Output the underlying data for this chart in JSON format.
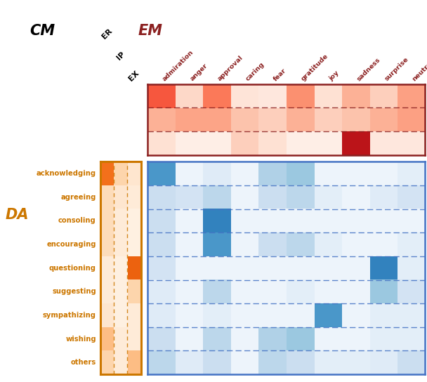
{
  "em_labels": [
    "ER",
    "IP",
    "EX"
  ],
  "da_labels": [
    "acknowledging",
    "agreeing",
    "consoling",
    "encouraging",
    "questioning",
    "suggesting",
    "sympathizing",
    "wishing",
    "others"
  ],
  "emotion_labels": [
    "admiration",
    "anger",
    "approval",
    "caring",
    "fear",
    "gratitude",
    "joy",
    "sadness",
    "surprise",
    "neutral"
  ],
  "em_data": [
    [
      0.55,
      0.15,
      0.45,
      0.1,
      0.08,
      0.38,
      0.12,
      0.28,
      0.18,
      0.33
    ],
    [
      0.28,
      0.32,
      0.32,
      0.22,
      0.18,
      0.28,
      0.18,
      0.22,
      0.28,
      0.33
    ],
    [
      0.12,
      0.04,
      0.04,
      0.18,
      0.12,
      0.04,
      0.04,
      0.8,
      0.08,
      0.08
    ]
  ],
  "da_data": [
    [
      0.6,
      0.05,
      0.12,
      0.05,
      0.32,
      0.38,
      0.05,
      0.05,
      0.05,
      0.1
    ],
    [
      0.22,
      0.18,
      0.28,
      0.05,
      0.22,
      0.28,
      0.1,
      0.05,
      0.12,
      0.18
    ],
    [
      0.22,
      0.05,
      0.68,
      0.05,
      0.05,
      0.05,
      0.05,
      0.05,
      0.05,
      0.05
    ],
    [
      0.22,
      0.05,
      0.6,
      0.05,
      0.22,
      0.28,
      0.1,
      0.05,
      0.05,
      0.1
    ],
    [
      0.18,
      0.05,
      0.05,
      0.05,
      0.05,
      0.05,
      0.05,
      0.05,
      0.68,
      0.1
    ],
    [
      0.12,
      0.05,
      0.28,
      0.05,
      0.05,
      0.1,
      0.05,
      0.05,
      0.38,
      0.18
    ],
    [
      0.12,
      0.05,
      0.1,
      0.05,
      0.05,
      0.05,
      0.6,
      0.05,
      0.1,
      0.1
    ],
    [
      0.22,
      0.05,
      0.28,
      0.05,
      0.32,
      0.38,
      0.05,
      0.05,
      0.1,
      0.1
    ],
    [
      0.28,
      0.12,
      0.22,
      0.05,
      0.28,
      0.22,
      0.1,
      0.1,
      0.12,
      0.22
    ]
  ],
  "da_cm_data": [
    [
      0.6,
      0.22,
      0.12
    ],
    [
      0.18,
      0.12,
      0.08
    ],
    [
      0.18,
      0.08,
      0.04
    ],
    [
      0.18,
      0.08,
      0.04
    ],
    [
      0.08,
      0.04,
      0.65
    ],
    [
      0.08,
      0.04,
      0.22
    ],
    [
      0.12,
      0.04,
      0.08
    ],
    [
      0.32,
      0.08,
      0.08
    ],
    [
      0.22,
      0.08,
      0.32
    ]
  ],
  "em_border_color": "#8B2020",
  "da_border_color": "#4472C4",
  "cm_da_border_color": "#CC7700",
  "label_color_em": "#8B2020",
  "label_color_da": "#CC7700",
  "label_color_cm": "#000000",
  "bg_color": "#ffffff"
}
